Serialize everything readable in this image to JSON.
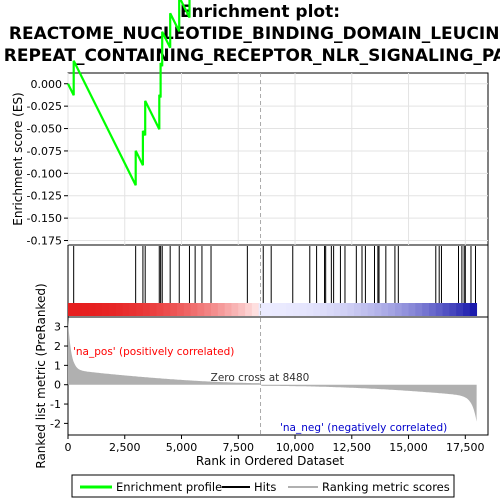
{
  "chart_data": {
    "type": "line",
    "title_lines": [
      "Enrichment plot:",
      "REACTOME_NUCLEOTIDE_BINDING_DOMAIN_LEUCINE",
      "REPEAT_CONTAINING_RECEPTOR_NLR_SIGNALING_PAT"
    ],
    "es_panel": {
      "ylabel": "Enrichment score (ES)",
      "ylim": [
        -0.18,
        0.012
      ],
      "yticks": [
        0.0,
        -0.025,
        -0.05,
        -0.075,
        -0.1,
        -0.125,
        -0.15,
        -0.175
      ],
      "ytick_labels": [
        "0.000",
        "-0.025",
        "-0.050",
        "-0.075",
        "-0.100",
        "-0.125",
        "-0.150",
        "-0.175"
      ],
      "grid": true,
      "series_name": "Enrichment profile",
      "color": "#00ff00"
    },
    "hits_x": [
      250,
      2980,
      3300,
      3400,
      4020,
      4080,
      4150,
      4500,
      4900,
      5350,
      5600,
      5900,
      6300,
      7900,
      8600,
      8950,
      9900,
      10650,
      10950,
      11300,
      11350,
      11600,
      11700,
      12000,
      12200,
      12700,
      12950,
      13100,
      13500,
      13650,
      13700,
      14000,
      14400,
      14550,
      16200,
      16350,
      16450,
      17200,
      17350,
      17450,
      17500,
      17750,
      17950
    ],
    "rank_panel": {
      "ylabel": "Ranked list metric (PreRanked)",
      "xlabel": "Rank in Ordered Dataset",
      "ylim": [
        -2.6,
        3.5
      ],
      "yticks": [
        3,
        2,
        1,
        0,
        -1,
        -2
      ],
      "ytick_labels": [
        "3",
        "2",
        "1",
        "0",
        "-1",
        "-2"
      ],
      "x_total": 18000,
      "zero_cross": 8480,
      "zero_cross_label": "Zero cross at 8480",
      "pos_label": "'na_pos' (positively correlated)",
      "neg_label": "'na_neg' (negatively correlated)",
      "pos_color": "#ff0000",
      "neg_color": "#0000ff",
      "fill_color": "#b0b0b0"
    },
    "xlim": [
      0,
      18500
    ],
    "xticks": [
      0,
      2500,
      5000,
      7500,
      10000,
      12500,
      15000,
      17500
    ],
    "xtick_labels": [
      "0",
      "2,500",
      "5,000",
      "7,500",
      "10,000",
      "12,500",
      "15,000",
      "17,500"
    ],
    "legend": [
      {
        "label": "Enrichment profile",
        "color": "#00ff00"
      },
      {
        "label": "Hits",
        "color": "#000000"
      },
      {
        "label": "Ranking metric scores",
        "color": "#b0b0b0"
      }
    ]
  }
}
